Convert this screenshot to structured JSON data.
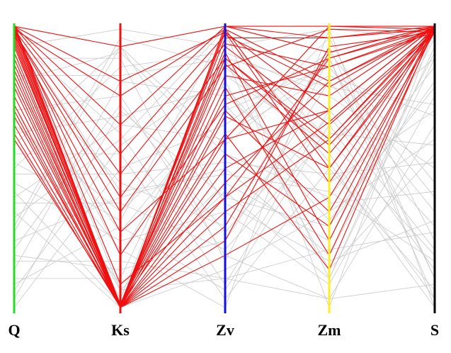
{
  "chart_data": {
    "type": "parallel-coordinates",
    "title": "",
    "axes": [
      {
        "name": "Q",
        "color": "#22dd22"
      },
      {
        "name": "Ks",
        "color": "#ee1111"
      },
      {
        "name": "Zv",
        "color": "#1111dd"
      },
      {
        "name": "Zm",
        "color": "#ffee22"
      },
      {
        "name": "S",
        "color": "#000000"
      }
    ],
    "value_range": [
      0,
      1
    ],
    "background_line_color": "#c8c8c8",
    "highlight_line_color": "#ee1111",
    "background_lines": [
      [
        0.95,
        0.62,
        0.1,
        0.7,
        0.3
      ],
      [
        0.9,
        0.2,
        0.8,
        0.15,
        0.55
      ],
      [
        0.85,
        0.45,
        0.3,
        0.92,
        0.12
      ],
      [
        0.8,
        0.9,
        0.55,
        0.4,
        0.85
      ],
      [
        0.75,
        0.05,
        0.95,
        0.6,
        0.2
      ],
      [
        0.7,
        0.75,
        0.2,
        0.05,
        0.65
      ],
      [
        0.65,
        0.35,
        0.7,
        0.85,
        0.4
      ],
      [
        0.6,
        0.1,
        0.45,
        0.25,
        0.95
      ],
      [
        0.55,
        0.55,
        0.05,
        0.5,
        0.08
      ],
      [
        0.5,
        0.85,
        0.9,
        0.75,
        0.5
      ],
      [
        0.45,
        0.25,
        0.35,
        0.1,
        0.75
      ],
      [
        0.4,
        0.65,
        0.6,
        0.95,
        0.25
      ],
      [
        0.35,
        0.02,
        0.15,
        0.35,
        0.6
      ],
      [
        0.3,
        0.95,
        0.85,
        0.55,
        0.05
      ],
      [
        0.25,
        0.4,
        0.5,
        0.2,
        0.9
      ],
      [
        0.2,
        0.15,
        0.25,
        0.8,
        0.35
      ],
      [
        0.15,
        0.8,
        0.75,
        0.45,
        0.7
      ],
      [
        0.1,
        0.3,
        0.08,
        0.65,
        0.15
      ],
      [
        0.05,
        0.7,
        0.4,
        0.3,
        0.8
      ],
      [
        0.02,
        0.5,
        0.65,
        0.9,
        0.45
      ],
      [
        0.98,
        0.08,
        0.12,
        0.05,
        0.1
      ],
      [
        0.92,
        0.98,
        0.92,
        0.98,
        0.95
      ],
      [
        0.12,
        0.12,
        0.88,
        0.12,
        0.92
      ],
      [
        0.88,
        0.88,
        0.18,
        0.88,
        0.05
      ],
      [
        0.33,
        0.6,
        0.98,
        0.02,
        0.98
      ],
      [
        0.67,
        0.22,
        0.02,
        0.98,
        0.02
      ],
      [
        0.48,
        0.48,
        0.52,
        0.48,
        0.52
      ],
      [
        0.22,
        0.72,
        0.28,
        0.68,
        0.22
      ],
      [
        0.78,
        0.28,
        0.72,
        0.32,
        0.78
      ],
      [
        0.58,
        0.92,
        0.38,
        0.18,
        0.32
      ],
      [
        0.42,
        0.03,
        0.62,
        0.82,
        0.68
      ],
      [
        0.08,
        0.58,
        0.82,
        0.58,
        0.88
      ],
      [
        0.97,
        0.42,
        0.48,
        0.42,
        0.18
      ],
      [
        0.18,
        0.18,
        0.12,
        0.22,
        0.28
      ],
      [
        0.82,
        0.82,
        0.88,
        0.78,
        0.72
      ],
      [
        0.38,
        0.38,
        0.22,
        0.62,
        0.58
      ],
      [
        0.62,
        0.68,
        0.78,
        0.38,
        0.42
      ],
      [
        0.28,
        0.92,
        0.58,
        0.88,
        0.12
      ],
      [
        0.72,
        0.08,
        0.42,
        0.12,
        0.88
      ],
      [
        0.52,
        0.32,
        0.98,
        0.52,
        0.02
      ]
    ],
    "highlighted_lines": [
      [
        1.0,
        0.02,
        0.3,
        0.9,
        0.99
      ],
      [
        0.99,
        0.02,
        0.45,
        0.8,
        0.98
      ],
      [
        0.98,
        0.02,
        0.6,
        0.7,
        0.99
      ],
      [
        0.97,
        0.03,
        0.75,
        0.85,
        0.97
      ],
      [
        0.96,
        0.02,
        0.88,
        0.6,
        0.99
      ],
      [
        0.95,
        0.03,
        0.95,
        0.95,
        0.98
      ],
      [
        0.94,
        0.02,
        0.2,
        0.4,
        0.99
      ],
      [
        0.93,
        0.02,
        0.68,
        0.5,
        0.97
      ],
      [
        0.92,
        0.03,
        0.82,
        0.75,
        0.99
      ],
      [
        0.9,
        0.02,
        0.99,
        0.99,
        0.98
      ],
      [
        0.88,
        0.03,
        0.55,
        0.3,
        0.99
      ],
      [
        0.86,
        0.02,
        0.92,
        0.65,
        0.97
      ],
      [
        0.84,
        0.02,
        0.4,
        0.88,
        0.99
      ],
      [
        0.82,
        0.03,
        0.78,
        0.2,
        0.98
      ],
      [
        0.8,
        0.02,
        0.97,
        0.45,
        0.99
      ],
      [
        0.78,
        0.02,
        0.25,
        0.92,
        0.97
      ],
      [
        0.75,
        0.03,
        0.62,
        0.15,
        0.99
      ],
      [
        0.72,
        0.02,
        0.86,
        0.55,
        0.98
      ],
      [
        0.7,
        0.02,
        0.5,
        0.7,
        0.99
      ],
      [
        0.68,
        0.03,
        0.7,
        0.35,
        0.97
      ],
      [
        0.65,
        0.02,
        0.98,
        0.8,
        0.99
      ],
      [
        0.62,
        0.02,
        0.35,
        0.6,
        0.98
      ],
      [
        0.6,
        0.03,
        0.9,
        0.25,
        0.99
      ],
      [
        0.99,
        0.65,
        0.99,
        0.95,
        0.99
      ],
      [
        0.98,
        0.48,
        0.93,
        0.85,
        0.98
      ],
      [
        0.99,
        0.8,
        0.97,
        0.7,
        0.99
      ],
      [
        0.97,
        0.35,
        0.85,
        0.98,
        0.97
      ],
      [
        0.99,
        0.92,
        0.99,
        0.9,
        0.99
      ],
      [
        0.98,
        0.2,
        0.72,
        0.88,
        0.98
      ],
      [
        0.99,
        0.55,
        0.96,
        0.78,
        0.99
      ],
      [
        0.96,
        0.28,
        0.6,
        0.99,
        0.99
      ],
      [
        0.99,
        0.1,
        0.4,
        0.66,
        0.98
      ],
      [
        0.98,
        0.75,
        0.98,
        0.5,
        0.99
      ],
      [
        0.97,
        0.4,
        0.88,
        0.58,
        0.97
      ]
    ]
  }
}
